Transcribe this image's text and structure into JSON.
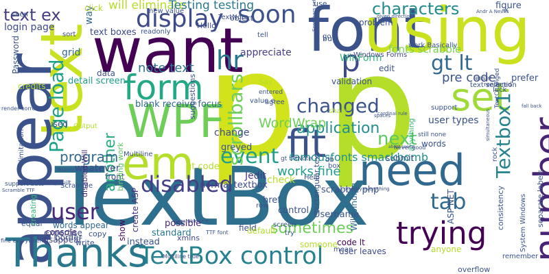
{
  "words": [
    {
      "text": "TextBox",
      "color": "#2f6f8e"
    },
    {
      "text": "p",
      "color": "#d2e21b"
    },
    {
      "text": "p",
      "color": "#b5de2b"
    },
    {
      "text": "font",
      "color": "#3b528b"
    },
    {
      "text": "want",
      "color": "#440154"
    },
    {
      "text": "using",
      "color": "#cae11f"
    },
    {
      "text": "text",
      "color": "#cae11f"
    },
    {
      "text": "appear",
      "color": "#3b528b"
    },
    {
      "text": "Thanks",
      "color": "#2a788e"
    },
    {
      "text": "need",
      "color": "#31688e"
    },
    {
      "text": "WPF",
      "color": "#6ece58"
    },
    {
      "text": "em",
      "color": "#b5de2b"
    },
    {
      "text": "fit",
      "color": "#3b528b"
    },
    {
      "text": "form",
      "color": "#22a884"
    },
    {
      "text": "set",
      "color": "#a0da39"
    },
    {
      "text": "number",
      "color": "#482475"
    },
    {
      "text": "trying",
      "color": "#440154"
    },
    {
      "text": "TextBox control",
      "color": "#26828e"
    },
    {
      "text": "hr",
      "color": "#2a788e"
    },
    {
      "text": "p",
      "color": "#3e4a89"
    },
    {
      "text": "soon",
      "color": "#3b528b"
    },
    {
      "text": "display",
      "color": "#3e4a89"
    },
    {
      "text": "Page load",
      "color": "#1fa187"
    },
    {
      "text": "disabled",
      "color": "#433e85"
    },
    {
      "text": "event",
      "color": "#1f9e89"
    },
    {
      "text": "tab",
      "color": "#31688e"
    },
    {
      "text": "user",
      "color": "#482878"
    },
    {
      "text": "changed",
      "color": "#3b528b"
    },
    {
      "text": "characters",
      "color": "#228c8d"
    },
    {
      "text": "gt lt",
      "color": "#31688e"
    },
    {
      "text": "Textbox1",
      "color": "#26828e"
    },
    {
      "text": "scrollbars",
      "color": "#6ece58"
    },
    {
      "text": "another",
      "color": "#29af7f"
    },
    {
      "text": "application",
      "color": "#21918c"
    },
    {
      "text": "next",
      "color": "#5ec962"
    },
    {
      "text": "text ex",
      "color": "#433e85"
    },
    {
      "text": "note text",
      "color": "#2c728e"
    },
    {
      "text": "sometimes",
      "color": "#6ece58"
    },
    {
      "text": "program",
      "color": "#31688e"
    },
    {
      "text": "works fine",
      "color": "#1f9e89"
    },
    {
      "text": "WordWrap",
      "color": "#6ece58"
    },
    {
      "text": "pre code",
      "color": "#3b528b"
    },
    {
      "text": "famousfonts smackbomb",
      "color": "#21918c"
    },
    {
      "text": "user types",
      "color": "#3b528b"
    },
    {
      "text": "will eliminate",
      "color": "#b5de2b"
    },
    {
      "text": "Testing testing",
      "color": "#2a788e"
    },
    {
      "text": "text boxes",
      "color": "#3e4a89"
    },
    {
      "text": "fonts scrabble",
      "color": "#7ad151"
    },
    {
      "text": "WinForm",
      "color": "#35b779"
    },
    {
      "text": "Windows Forms",
      "color": "#414487"
    },
    {
      "text": "appreciate",
      "color": "#433e85"
    },
    {
      "text": "login page",
      "color": "#3e4a89"
    },
    {
      "text": "Password",
      "color": "#3b528b"
    },
    {
      "text": "grid",
      "color": "#31688e"
    },
    {
      "text": "way",
      "color": "#31688e"
    },
    {
      "text": "sort",
      "color": "#3e4a89"
    },
    {
      "text": "detail screen",
      "color": "#1f9e89"
    },
    {
      "text": "blank receive focus",
      "color": "#31688e"
    },
    {
      "text": "gt code",
      "color": "#b5de2b"
    },
    {
      "text": "create ASP",
      "color": "#46327e"
    },
    {
      "text": "possible",
      "color": "#482475"
    },
    {
      "text": "console",
      "color": "#482878"
    },
    {
      "text": "disappear",
      "color": "#414487"
    },
    {
      "text": "expertise",
      "color": "#3e4a89"
    },
    {
      "text": "words appear",
      "color": "#31688e"
    },
    {
      "text": "standard",
      "color": "#2a788e"
    },
    {
      "text": "instead",
      "color": "#3b528b"
    },
    {
      "text": "show",
      "color": "#440154"
    },
    {
      "text": "front",
      "color": "#3e4a89"
    },
    {
      "text": "whatever",
      "color": "#3e4a89"
    },
    {
      "text": "Scramble",
      "color": "#3b528b"
    },
    {
      "text": "used",
      "color": "#3b528b"
    },
    {
      "text": "data",
      "color": "#3b528b"
    },
    {
      "text": "disabled Will",
      "color": "#482878"
    },
    {
      "text": "binding work",
      "color": "#5ec962"
    },
    {
      "text": "Multiline",
      "color": "#3b528b"
    },
    {
      "text": "normal textbox",
      "color": "#3e4a89"
    },
    {
      "text": "change",
      "color": "#3e4a89"
    },
    {
      "text": "greyed",
      "color": "#3b528b"
    },
    {
      "text": "Jedit",
      "color": "#443983"
    },
    {
      "text": "Username",
      "color": "#3b528b"
    },
    {
      "text": "check",
      "color": "#b5de2b"
    },
    {
      "text": "scrabble php",
      "color": "#3b528b"
    },
    {
      "text": "someone",
      "color": "#b5de2b"
    },
    {
      "text": "control",
      "color": "#3b528b"
    },
    {
      "text": "code lt",
      "color": "#440154"
    },
    {
      "text": "rectangular text",
      "color": "#3b528b"
    },
    {
      "text": "Will binding",
      "color": "#31688e"
    },
    {
      "text": "submit",
      "color": "#3b528b"
    },
    {
      "text": "words",
      "color": "#3b528b"
    },
    {
      "text": "anything",
      "color": "#35b779"
    },
    {
      "text": "Hello",
      "color": "#3e4a89"
    },
    {
      "text": "object",
      "color": "#3e4a89"
    },
    {
      "text": "problem",
      "color": "#3b528b"
    },
    {
      "text": "figure",
      "color": "#3b528b"
    },
    {
      "text": "prefer",
      "color": "#3b528b"
    },
    {
      "text": "text selection",
      "color": "#3b528b"
    },
    {
      "text": "edit",
      "color": "#3b528b"
    },
    {
      "text": "validation",
      "color": "#3b528b"
    },
    {
      "text": "support",
      "color": "#3b528b"
    },
    {
      "text": "separate labels",
      "color": "#3b528b"
    },
    {
      "text": "consistency",
      "color": "#3b528b"
    },
    {
      "text": "ASP NET",
      "color": "#3b528b"
    },
    {
      "text": "System Windows",
      "color": "#3b528b"
    },
    {
      "text": "user leaves",
      "color": "#3e4a89"
    },
    {
      "text": "field",
      "color": "#3b528b"
    },
    {
      "text": "xmlns",
      "color": "#3e4a89"
    },
    {
      "text": "copy",
      "color": "#3b528b"
    },
    {
      "text": "write",
      "color": "#3b528b"
    },
    {
      "text": "equal",
      "color": "#3b528b"
    },
    {
      "text": "creating",
      "color": "#35b779"
    },
    {
      "text": "limitation",
      "color": "#3b528b"
    },
    {
      "text": "suggestions",
      "color": "#3b528b"
    },
    {
      "text": "seen",
      "color": "#3b528b"
    },
    {
      "text": "click",
      "color": "#b5de2b"
    },
    {
      "text": "new value",
      "color": "#3b528b"
    },
    {
      "text": "readonly",
      "color": "#3b528b"
    },
    {
      "text": "bug",
      "color": "#3b528b"
    },
    {
      "text": "tell",
      "color": "#3b528b"
    },
    {
      "text": "Say",
      "color": "#b5de2b"
    },
    {
      "text": "entered",
      "color": "#3b528b"
    },
    {
      "text": "value e",
      "color": "#3b528b"
    },
    {
      "text": "agree",
      "color": "#3b528b"
    },
    {
      "text": "share",
      "color": "#b5de2b"
    },
    {
      "text": "work Basically",
      "color": "#3b528b"
    },
    {
      "text": "rendered",
      "color": "#3b528b"
    },
    {
      "text": "lesser",
      "color": "#3b528b"
    },
    {
      "text": "luck",
      "color": "#3b528b"
    },
    {
      "text": "rock",
      "color": "#3b528b"
    },
    {
      "text": "credits",
      "color": "#b5de2b"
    },
    {
      "text": "use",
      "color": "#3b528b"
    },
    {
      "text": "go",
      "color": "#3b528b"
    },
    {
      "text": "TextNote",
      "color": "#3b528b"
    },
    {
      "text": "box",
      "color": "#3b528b"
    },
    {
      "text": "db",
      "color": "#3b528b"
    },
    {
      "text": "Help",
      "color": "#3b528b"
    },
    {
      "text": "row",
      "color": "#3b528b"
    },
    {
      "text": "default",
      "color": "#b5de2b"
    },
    {
      "text": "screen",
      "color": "#3b528b"
    },
    {
      "text": "try",
      "color": "#3b528b"
    },
    {
      "text": "mean",
      "color": "#3b528b"
    },
    {
      "text": "anyone",
      "color": "#b5de2b"
    },
    {
      "text": "remember",
      "color": "#3b528b"
    },
    {
      "text": "overflow",
      "color": "#3b528b"
    },
    {
      "text": "Output",
      "color": "#b5de2b"
    },
    {
      "text": "href",
      "color": "#3b528b"
    },
    {
      "text": "border",
      "color": "#3b528b"
    },
    {
      "text": "support auto",
      "color": "#3b528b"
    },
    {
      "text": "anything built",
      "color": "#3b528b"
    },
    {
      "text": "fine everywhere",
      "color": "#3b528b"
    },
    {
      "text": "render correctly",
      "color": "#3b528b"
    },
    {
      "text": "Testing FontFamily",
      "color": "#3b528b"
    },
    {
      "text": "still none",
      "color": "#3b528b"
    },
    {
      "text": "Never good",
      "color": "#3b528b"
    },
    {
      "text": "gt txtNote",
      "color": "#3b528b"
    },
    {
      "text": "TTF font",
      "color": "#3b528b"
    },
    {
      "text": "Scramble TTF",
      "color": "#3b528b"
    },
    {
      "text": "Scrollbars settings",
      "color": "#3b528b"
    },
    {
      "text": "correctly everything",
      "color": "#3b528b"
    },
    {
      "text": "fall back",
      "color": "#3b528b"
    },
    {
      "text": "simultaneous",
      "color": "#3b528b"
    },
    {
      "text": "TextChanged",
      "color": "#3b528b"
    },
    {
      "text": "Multiline true",
      "color": "#3b528b"
    },
    {
      "text": "Scramble title",
      "color": "#3b528b"
    },
    {
      "text": "given direction",
      "color": "#3b528b"
    },
    {
      "text": "cardinal rule",
      "color": "#3b528b"
    },
    {
      "text": "spaces",
      "color": "#3b528b"
    },
    {
      "text": "about seems",
      "color": "#3b528b"
    },
    {
      "text": "Andr A Neves",
      "color": "#3b528b"
    },
    {
      "text": "X",
      "color": "#3b528b"
    }
  ]
}
